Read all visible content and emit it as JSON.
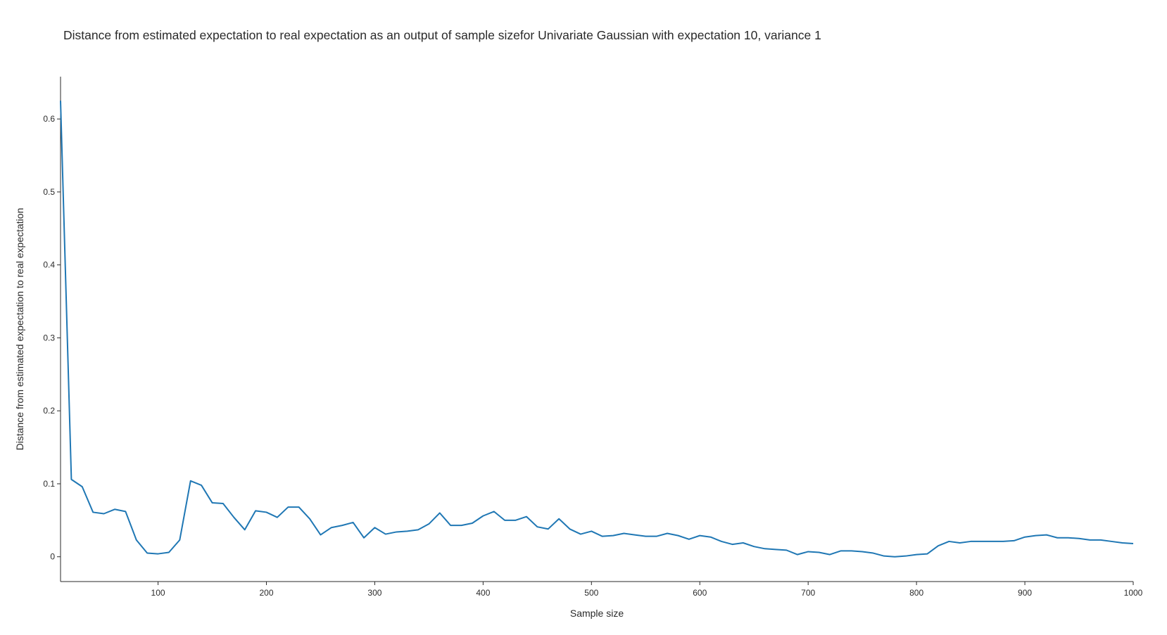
{
  "chart_data": {
    "type": "line",
    "title": "Distance from estimated expectation to real expectation as an output of sample sizefor Univariate Gaussian with expectation 10, variance 1",
    "xlabel": "Sample size",
    "ylabel": "Distance from estimated expectation to real expectation",
    "xlim": [
      10,
      1000
    ],
    "ylim": [
      -0.034,
      0.658
    ],
    "xticks": [
      100,
      200,
      300,
      400,
      500,
      600,
      700,
      800,
      900,
      1000
    ],
    "xtick_labels": [
      "100",
      "200",
      "300",
      "400",
      "500",
      "600",
      "700",
      "800",
      "900",
      "1000"
    ],
    "yticks": [
      0,
      0.1,
      0.2,
      0.3,
      0.4,
      0.5,
      0.6
    ],
    "ytick_labels": [
      "0",
      "0.1",
      "0.2",
      "0.3",
      "0.4",
      "0.5",
      "0.6"
    ],
    "grid": false,
    "legend": false,
    "line_color": "#1f77b4",
    "series": [
      {
        "x": [
          10,
          20,
          30,
          40,
          50,
          60,
          70,
          80,
          90,
          100,
          110,
          120,
          130,
          140,
          150,
          160,
          170,
          180,
          190,
          200,
          210,
          220,
          230,
          240,
          250,
          260,
          270,
          280,
          290,
          300,
          310,
          320,
          330,
          340,
          350,
          360,
          370,
          380,
          390,
          400,
          410,
          420,
          430,
          440,
          450,
          460,
          470,
          480,
          490,
          500,
          510,
          520,
          530,
          540,
          550,
          560,
          570,
          580,
          590,
          600,
          610,
          620,
          630,
          640,
          650,
          660,
          670,
          680,
          690,
          700,
          710,
          720,
          730,
          740,
          750,
          760,
          770,
          780,
          790,
          800,
          810,
          820,
          830,
          840,
          850,
          860,
          870,
          880,
          890,
          900,
          910,
          920,
          930,
          940,
          950,
          960,
          970,
          980,
          990,
          1000
        ],
        "values": [
          0.625,
          0.106,
          0.096,
          0.061,
          0.059,
          0.065,
          0.062,
          0.023,
          0.005,
          0.004,
          0.006,
          0.023,
          0.104,
          0.098,
          0.074,
          0.073,
          0.054,
          0.037,
          0.063,
          0.061,
          0.054,
          0.068,
          0.068,
          0.052,
          0.03,
          0.04,
          0.043,
          0.047,
          0.026,
          0.04,
          0.031,
          0.034,
          0.035,
          0.037,
          0.045,
          0.06,
          0.043,
          0.043,
          0.046,
          0.056,
          0.062,
          0.05,
          0.05,
          0.055,
          0.041,
          0.038,
          0.052,
          0.038,
          0.031,
          0.035,
          0.028,
          0.029,
          0.032,
          0.03,
          0.028,
          0.028,
          0.032,
          0.029,
          0.024,
          0.029,
          0.027,
          0.021,
          0.017,
          0.019,
          0.014,
          0.011,
          0.01,
          0.009,
          0.003,
          0.007,
          0.006,
          0.003,
          0.008,
          0.008,
          0.007,
          0.005,
          0.001,
          0.0,
          0.001,
          0.003,
          0.004,
          0.015,
          0.021,
          0.019,
          0.021,
          0.021,
          0.021,
          0.021,
          0.022,
          0.027,
          0.029,
          0.03,
          0.026,
          0.026,
          0.025,
          0.023,
          0.023,
          0.021,
          0.019,
          0.018
        ]
      }
    ]
  }
}
